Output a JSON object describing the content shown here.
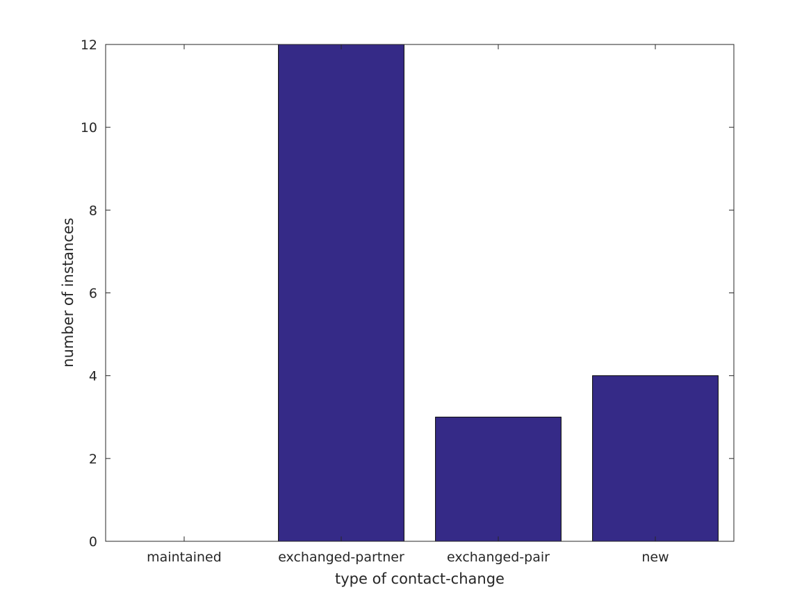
{
  "chart_data": {
    "type": "bar",
    "title": "",
    "xlabel": "type of contact-change",
    "ylabel": "number of instances",
    "categories": [
      "maintained",
      "exchanged-partner",
      "exchanged-pair",
      "new"
    ],
    "values": [
      0,
      12,
      3,
      4
    ],
    "ylim": [
      0,
      12
    ],
    "yticks": [
      0,
      2,
      4,
      6,
      8,
      10,
      12
    ],
    "grid": false,
    "legend": "none",
    "colors": {
      "bar_fill": "#352a87",
      "bar_stroke": "#000000",
      "axis": "#262626",
      "text": "#262626"
    }
  }
}
